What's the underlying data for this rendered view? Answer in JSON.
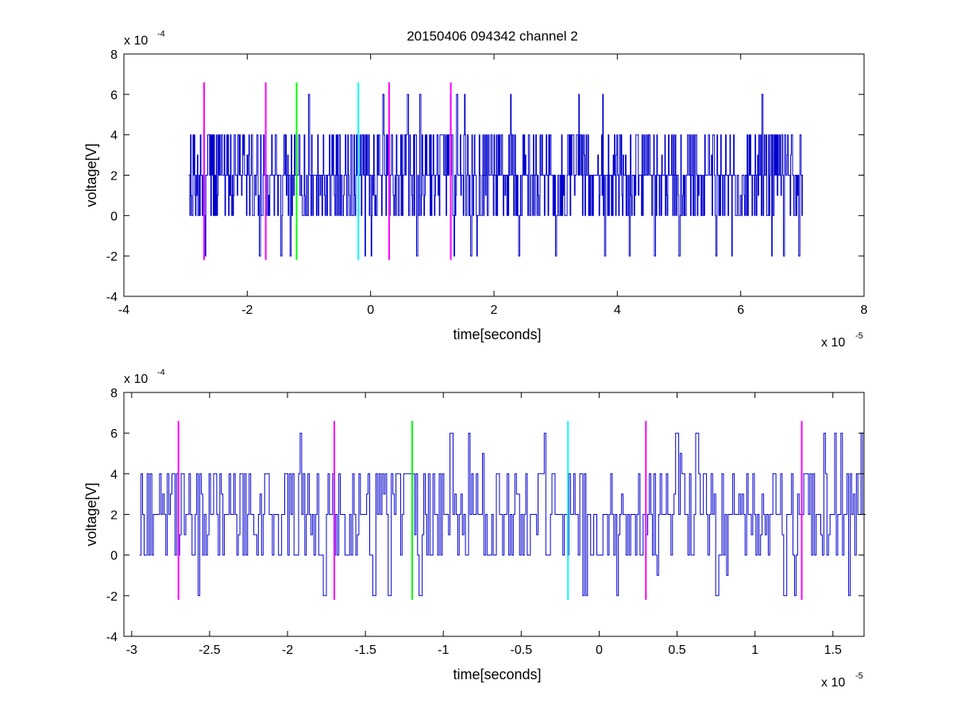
{
  "figure": {
    "title": "20150406 094342 channel 2"
  },
  "chart_data": [
    {
      "type": "line",
      "title": "20150406 094342 channel 2",
      "xlabel": "time[seconds]",
      "ylabel": "voltage[V]",
      "x_exponent": {
        "base": "x 10",
        "power": "-5"
      },
      "y_exponent": {
        "base": "x 10",
        "power": "-4"
      },
      "xlim": [
        -4,
        8
      ],
      "ylim": [
        -4,
        8
      ],
      "x_ticks": [
        -4,
        -2,
        0,
        2,
        4,
        6,
        8
      ],
      "x_tick_labels": [
        "-4",
        "-2",
        "0",
        "2",
        "4",
        "6",
        "8"
      ],
      "y_ticks": [
        -4,
        -2,
        0,
        2,
        4,
        6,
        8
      ],
      "y_tick_labels": [
        "-4",
        "-2",
        "0",
        "2",
        "4",
        "6",
        "8"
      ],
      "grid": false,
      "signal": {
        "color": "#0000cc",
        "x_start": -2.95,
        "x_end": 7.0,
        "samples": 1000,
        "step_levels": [
          -2,
          0,
          1,
          2,
          4,
          6
        ],
        "baseline": 2,
        "spikes": [
          [
            -1.0,
            6
          ],
          [
            0.2,
            6
          ],
          [
            0.6,
            6
          ],
          [
            0.8,
            6
          ],
          [
            1.4,
            6
          ],
          [
            6.35,
            6
          ]
        ],
        "dips": [
          [
            -1.8,
            -2
          ],
          [
            -1.45,
            -2
          ],
          [
            -1.3,
            -2
          ],
          [
            0.75,
            -2
          ],
          [
            2.4,
            -2
          ],
          [
            3.0,
            -2
          ],
          [
            3.8,
            -2
          ],
          [
            4.2,
            -2
          ],
          [
            4.6,
            -2
          ],
          [
            5.0,
            -2
          ],
          [
            5.6,
            -2
          ],
          [
            6.7,
            -2
          ],
          [
            6.95,
            -2
          ]
        ]
      },
      "markers": [
        {
          "x": -2.7,
          "color": "#ff00ff"
        },
        {
          "x": -1.7,
          "color": "#ff00ff"
        },
        {
          "x": -1.2,
          "color": "#00ff00"
        },
        {
          "x": -0.2,
          "color": "#00ffff"
        },
        {
          "x": 0.3,
          "color": "#ff00ff"
        },
        {
          "x": 1.3,
          "color": "#ff00ff"
        }
      ],
      "marker_range": [
        -2.2,
        6.6
      ]
    },
    {
      "type": "line",
      "title": "",
      "xlabel": "time[seconds]",
      "ylabel": "voltage[V]",
      "x_exponent": {
        "base": "x 10",
        "power": "-5"
      },
      "y_exponent": {
        "base": "x 10",
        "power": "-4"
      },
      "xlim": [
        -3.05,
        1.7
      ],
      "ylim": [
        -4,
        8
      ],
      "x_ticks": [
        -3,
        -2.5,
        -2,
        -1.5,
        -1,
        -0.5,
        0,
        0.5,
        1,
        1.5
      ],
      "x_tick_labels": [
        "-3",
        "-2.5",
        "-2",
        "-1.5",
        "-1",
        "-0.5",
        "0",
        "0.5",
        "1",
        "1.5"
      ],
      "y_ticks": [
        -4,
        -2,
        0,
        2,
        4,
        6,
        8
      ],
      "y_tick_labels": [
        "-4",
        "-2",
        "0",
        "2",
        "4",
        "6",
        "8"
      ],
      "grid": false,
      "signal": {
        "color": "#0000cc",
        "x_start": -2.95,
        "x_end": 1.7,
        "samples": 470,
        "step_levels": [
          -2,
          -1,
          0,
          1,
          2,
          3,
          4,
          5,
          6
        ],
        "baseline": 2,
        "spikes": [
          [
            -0.95,
            6
          ],
          [
            0.5,
            6
          ],
          [
            0.62,
            6
          ]
        ],
        "dips": [
          [
            -1.77,
            -2
          ],
          [
            -1.45,
            -2
          ],
          [
            -1.35,
            -2
          ],
          [
            -1.15,
            -2
          ],
          [
            0.75,
            -2
          ],
          [
            1.19,
            -2
          ]
        ]
      },
      "markers": [
        {
          "x": -2.7,
          "color": "#ff00ff"
        },
        {
          "x": -1.7,
          "color": "#ff00ff"
        },
        {
          "x": -1.2,
          "color": "#00ff00"
        },
        {
          "x": -0.2,
          "color": "#00ffff"
        },
        {
          "x": 0.3,
          "color": "#ff00ff"
        },
        {
          "x": 1.3,
          "color": "#ff00ff"
        }
      ],
      "marker_range": [
        -2.2,
        6.6
      ]
    }
  ]
}
